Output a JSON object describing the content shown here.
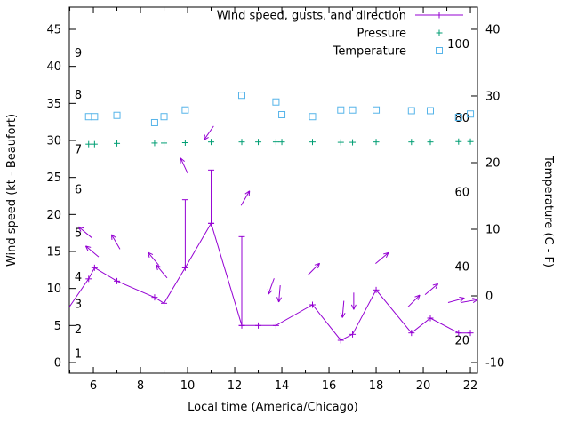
{
  "chart_data": {
    "type": "line",
    "title": "",
    "xlabel": "Local time (America/Chicago)",
    "ylabel_left": "Wind speed (kt - Beaufort)",
    "ylabel_right": "Temperature (C - F)",
    "grid": false,
    "legend_position": "top-right",
    "colors": {
      "wind": "#9400D3",
      "pressure": "#009E73",
      "temperature": "#56B4E9",
      "axis": "#000000"
    },
    "axes": {
      "x": {
        "range": [
          4.98,
          22.3
        ],
        "ticks": [
          6,
          8,
          10,
          12,
          14,
          16,
          18,
          20,
          22
        ],
        "minor": [
          5,
          7,
          9,
          11,
          13,
          15,
          17,
          19,
          21
        ]
      },
      "left": {
        "range": [
          -1.44,
          48.0
        ],
        "ticks": [
          0,
          5,
          10,
          15,
          20,
          25,
          30,
          35,
          40,
          45
        ]
      },
      "right": {
        "range": [
          -11.6,
          43.33
        ],
        "ticks": [
          -10,
          0,
          10,
          20,
          30,
          40
        ]
      }
    },
    "inner_labels": {
      "beaufort": [
        {
          "label": "1",
          "kt": 1.2
        },
        {
          "label": "2",
          "kt": 4.5
        },
        {
          "label": "3",
          "kt": 7.9
        },
        {
          "label": "4",
          "kt": 11.6
        },
        {
          "label": "5",
          "kt": 17.5
        },
        {
          "label": "6",
          "kt": 23.4
        },
        {
          "label": "7",
          "kt": 28.8
        },
        {
          "label": "8",
          "kt": 36.2
        },
        {
          "label": "9",
          "kt": 41.8
        }
      ],
      "fahrenheit": [
        {
          "label": "20",
          "c": -6.7
        },
        {
          "label": "40",
          "c": 4.4
        },
        {
          "label": "60",
          "c": 15.6
        },
        {
          "label": "80",
          "c": 26.7
        },
        {
          "label": "100",
          "c": 37.8
        }
      ]
    },
    "series": [
      {
        "name": "Wind speed, gusts, and direction",
        "style": "wind",
        "color": "#9400D3",
        "axis": "left",
        "points": [
          {
            "x": 4.98,
            "kt": 7.5,
            "marker": false
          },
          {
            "x": 5.8,
            "kt": 11.3
          },
          {
            "x": 6.05,
            "kt": 12.8
          },
          {
            "x": 7.0,
            "kt": 11.0
          },
          {
            "x": 8.6,
            "kt": 8.8
          },
          {
            "x": 9.0,
            "kt": 8.0
          },
          {
            "x": 9.9,
            "kt": 12.8,
            "gust": 22.0
          },
          {
            "x": 11.0,
            "kt": 18.8,
            "gust": 26.0
          },
          {
            "x": 12.3,
            "kt": 5.0,
            "gust": 17.0
          },
          {
            "x": 13.0,
            "kt": 5.0
          },
          {
            "x": 13.75,
            "kt": 5.0
          },
          {
            "x": 15.3,
            "kt": 7.8
          },
          {
            "x": 16.5,
            "kt": 3.0
          },
          {
            "x": 17.0,
            "kt": 3.8
          },
          {
            "x": 18.0,
            "kt": 9.8
          },
          {
            "x": 19.5,
            "kt": 4.0
          },
          {
            "x": 20.3,
            "kt": 6.0
          },
          {
            "x": 21.5,
            "kt": 4.0
          },
          {
            "x": 22.0,
            "kt": 4.0
          }
        ],
        "arrows": [
          {
            "x": 5.65,
            "kt": 17.6,
            "deg": 140
          },
          {
            "x": 5.95,
            "kt": 15.0,
            "deg": 140
          },
          {
            "x": 6.95,
            "kt": 16.3,
            "deg": 120
          },
          {
            "x": 8.55,
            "kt": 14.0,
            "deg": 130
          },
          {
            "x": 8.9,
            "kt": 12.3,
            "deg": 130
          },
          {
            "x": 9.85,
            "kt": 26.6,
            "deg": 115
          },
          {
            "x": 10.9,
            "kt": 31.0,
            "deg": 235
          },
          {
            "x": 12.45,
            "kt": 22.2,
            "deg": 60
          },
          {
            "x": 13.55,
            "kt": 10.3,
            "deg": 250
          },
          {
            "x": 13.9,
            "kt": 9.3,
            "deg": 265
          },
          {
            "x": 15.35,
            "kt": 12.6,
            "deg": 45
          },
          {
            "x": 16.6,
            "kt": 7.2,
            "deg": 265
          },
          {
            "x": 17.05,
            "kt": 8.3,
            "deg": 270
          },
          {
            "x": 18.25,
            "kt": 14.1,
            "deg": 40
          },
          {
            "x": 19.6,
            "kt": 8.3,
            "deg": 45
          },
          {
            "x": 20.35,
            "kt": 9.9,
            "deg": 40
          },
          {
            "x": 21.4,
            "kt": 8.4,
            "deg": 15
          },
          {
            "x": 21.95,
            "kt": 8.3,
            "deg": 10
          }
        ]
      },
      {
        "name": "Pressure",
        "style": "plus",
        "color": "#009E73",
        "axis": "left",
        "points": [
          {
            "x": 5.8,
            "v": 29.5
          },
          {
            "x": 6.05,
            "v": 29.5
          },
          {
            "x": 7.0,
            "v": 29.6
          },
          {
            "x": 8.6,
            "v": 29.65
          },
          {
            "x": 9.0,
            "v": 29.65
          },
          {
            "x": 9.9,
            "v": 29.7
          },
          {
            "x": 11.0,
            "v": 29.8
          },
          {
            "x": 12.3,
            "v": 29.8
          },
          {
            "x": 13.0,
            "v": 29.8
          },
          {
            "x": 13.75,
            "v": 29.8
          },
          {
            "x": 14.0,
            "v": 29.8
          },
          {
            "x": 15.3,
            "v": 29.8
          },
          {
            "x": 16.5,
            "v": 29.75
          },
          {
            "x": 17.0,
            "v": 29.75
          },
          {
            "x": 18.0,
            "v": 29.8
          },
          {
            "x": 19.5,
            "v": 29.8
          },
          {
            "x": 20.3,
            "v": 29.8
          },
          {
            "x": 21.5,
            "v": 29.85
          },
          {
            "x": 22.0,
            "v": 29.85
          }
        ]
      },
      {
        "name": "Temperature",
        "style": "square",
        "color": "#56B4E9",
        "axis": "right",
        "points": [
          {
            "x": 5.8,
            "v": 26.9
          },
          {
            "x": 6.05,
            "v": 26.9
          },
          {
            "x": 7.0,
            "v": 27.1
          },
          {
            "x": 8.6,
            "v": 26.0
          },
          {
            "x": 9.0,
            "v": 26.9
          },
          {
            "x": 9.9,
            "v": 27.9
          },
          {
            "x": 12.3,
            "v": 30.1
          },
          {
            "x": 13.75,
            "v": 29.1
          },
          {
            "x": 14.0,
            "v": 27.2
          },
          {
            "x": 15.3,
            "v": 26.9
          },
          {
            "x": 16.5,
            "v": 27.9
          },
          {
            "x": 17.0,
            "v": 27.9
          },
          {
            "x": 18.0,
            "v": 27.9
          },
          {
            "x": 19.5,
            "v": 27.8
          },
          {
            "x": 20.3,
            "v": 27.8
          },
          {
            "x": 21.5,
            "v": 26.8
          },
          {
            "x": 22.0,
            "v": 27.3
          }
        ]
      }
    ]
  }
}
